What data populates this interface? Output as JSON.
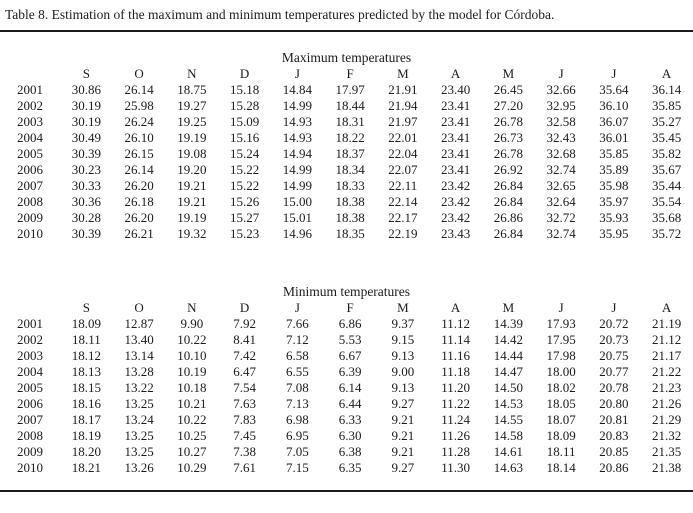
{
  "title": "Table 8. Estimation of the maximum and minimum temperatures predicted by the model for Córdoba.",
  "columns": [
    "S",
    "O",
    "N",
    "D",
    "J",
    "F",
    "M",
    "A",
    "M",
    "J",
    "J",
    "A"
  ],
  "tables": [
    {
      "caption": "Maximum temperatures",
      "rows": [
        {
          "year": "2001",
          "values": [
            "30.86",
            "26.14",
            "18.75",
            "15.18",
            "14.84",
            "17.97",
            "21.91",
            "23.40",
            "26.45",
            "32.66",
            "35.64",
            "36.14"
          ]
        },
        {
          "year": "2002",
          "values": [
            "30.19",
            "25.98",
            "19.27",
            "15.28",
            "14.99",
            "18.44",
            "21.94",
            "23.41",
            "27.20",
            "32.95",
            "36.10",
            "35.85"
          ]
        },
        {
          "year": "2003",
          "values": [
            "30.19",
            "26.24",
            "19.25",
            "15.09",
            "14.93",
            "18.31",
            "21.97",
            "23.41",
            "26.78",
            "32.58",
            "36.07",
            "35.27"
          ]
        },
        {
          "year": "2004",
          "values": [
            "30.49",
            "26.10",
            "19.19",
            "15.16",
            "14.93",
            "18.22",
            "22.01",
            "23.41",
            "26.73",
            "32.43",
            "36.01",
            "35.45"
          ]
        },
        {
          "year": "2005",
          "values": [
            "30.39",
            "26.15",
            "19.08",
            "15.24",
            "14.94",
            "18.37",
            "22.04",
            "23.41",
            "26.78",
            "32.68",
            "35.85",
            "35.82"
          ]
        },
        {
          "year": "2006",
          "values": [
            "30.23",
            "26.14",
            "19.20",
            "15.22",
            "14.99",
            "18.34",
            "22.07",
            "23.41",
            "26.92",
            "32.74",
            "35.89",
            "35.67"
          ]
        },
        {
          "year": "2007",
          "values": [
            "30.33",
            "26.20",
            "19.21",
            "15.22",
            "14.99",
            "18.33",
            "22.11",
            "23.42",
            "26.84",
            "32.65",
            "35.98",
            "35.44"
          ]
        },
        {
          "year": "2008",
          "values": [
            "30.36",
            "26.18",
            "19.21",
            "15.26",
            "15.00",
            "18.38",
            "22.14",
            "23.42",
            "26.84",
            "32.64",
            "35.97",
            "35.54"
          ]
        },
        {
          "year": "2009",
          "values": [
            "30.28",
            "26.20",
            "19.19",
            "15.27",
            "15.01",
            "18.38",
            "22.17",
            "23.42",
            "26.86",
            "32.72",
            "35.93",
            "35.68"
          ]
        },
        {
          "year": "2010",
          "values": [
            "30.39",
            "26.21",
            "19.32",
            "15.23",
            "14.96",
            "18.35",
            "22.19",
            "23.43",
            "26.84",
            "32.74",
            "35.95",
            "35.72"
          ]
        }
      ]
    },
    {
      "caption": "Minimum temperatures",
      "rows": [
        {
          "year": "2001",
          "values": [
            "18.09",
            "12.87",
            "9.90",
            "7.92",
            "7.66",
            "6.86",
            "9.37",
            "11.12",
            "14.39",
            "17.93",
            "20.72",
            "21.19"
          ]
        },
        {
          "year": "2002",
          "values": [
            "18.11",
            "13.40",
            "10.22",
            "8.41",
            "7.12",
            "5.53",
            "9.15",
            "11.14",
            "14.42",
            "17.95",
            "20.73",
            "21.12"
          ]
        },
        {
          "year": "2003",
          "values": [
            "18.12",
            "13.14",
            "10.10",
            "7.42",
            "6.58",
            "6.67",
            "9.13",
            "11.16",
            "14.44",
            "17.98",
            "20.75",
            "21.17"
          ]
        },
        {
          "year": "2004",
          "values": [
            "18.13",
            "13.28",
            "10.19",
            "6.47",
            "6.55",
            "6.39",
            "9.00",
            "11.18",
            "14.47",
            "18.00",
            "20.77",
            "21.22"
          ]
        },
        {
          "year": "2005",
          "values": [
            "18.15",
            "13.22",
            "10.18",
            "7.54",
            "7.08",
            "6.14",
            "9.13",
            "11.20",
            "14.50",
            "18.02",
            "20.78",
            "21.23"
          ]
        },
        {
          "year": "2006",
          "values": [
            "18.16",
            "13.25",
            "10.21",
            "7.63",
            "7.13",
            "6.44",
            "9.27",
            "11.22",
            "14.53",
            "18.05",
            "20.80",
            "21.26"
          ]
        },
        {
          "year": "2007",
          "values": [
            "18.17",
            "13.24",
            "10.22",
            "7.83",
            "6.98",
            "6.33",
            "9.21",
            "11.24",
            "14.55",
            "18.07",
            "20.81",
            "21.29"
          ]
        },
        {
          "year": "2008",
          "values": [
            "18.19",
            "13.25",
            "10.25",
            "7.45",
            "6.95",
            "6.30",
            "9.21",
            "11.26",
            "14.58",
            "18.09",
            "20.83",
            "21.32"
          ]
        },
        {
          "year": "2009",
          "values": [
            "18.20",
            "13.25",
            "10.27",
            "7.38",
            "7.05",
            "6.38",
            "9.21",
            "11.28",
            "14.61",
            "18.11",
            "20.85",
            "21.35"
          ]
        },
        {
          "year": "2010",
          "values": [
            "18.21",
            "13.26",
            "10.29",
            "7.61",
            "7.15",
            "6.35",
            "9.27",
            "11.30",
            "14.63",
            "18.14",
            "20.86",
            "21.38"
          ]
        }
      ]
    }
  ]
}
